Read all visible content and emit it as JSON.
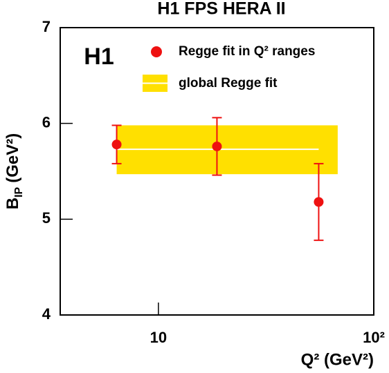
{
  "chart_data": {
    "type": "scatter",
    "title": "H1 FPS HERA II",
    "logo": "H1",
    "x_label": "Q² (GeV²)",
    "y_label": {
      "main": "B",
      "sub": "IP",
      "unit": "(GeV²)"
    },
    "xscale": "log",
    "xlim": [
      3.5,
      100
    ],
    "xticks": [
      10,
      {
        "value": 100,
        "label": "10²"
      }
    ],
    "ylim": [
      4,
      7
    ],
    "yticks": [
      4,
      5,
      6,
      7
    ],
    "series": [
      {
        "name": "Regge fit in Q² ranges",
        "color": "#ee1111",
        "x": [
          6.4,
          18.7,
          55.5
        ],
        "values": [
          5.78,
          5.76,
          5.18
        ],
        "errors": [
          0.2,
          0.3,
          0.4
        ]
      }
    ],
    "band": {
      "name": "global Regge fit",
      "color": "#ffe000",
      "x": [
        6.4,
        68
      ],
      "y": [
        5.47,
        5.98
      ],
      "center": 5.73,
      "center_x_end": 55.5
    }
  }
}
